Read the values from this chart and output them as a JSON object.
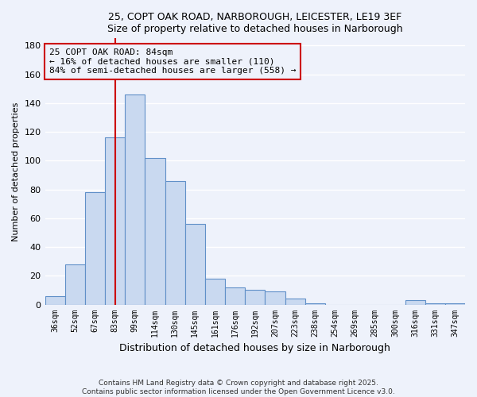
{
  "title1": "25, COPT OAK ROAD, NARBOROUGH, LEICESTER, LE19 3EF",
  "title2": "Size of property relative to detached houses in Narborough",
  "xlabel": "Distribution of detached houses by size in Narborough",
  "ylabel": "Number of detached properties",
  "bar_color": "#c9d9f0",
  "bar_edge_color": "#6090c8",
  "categories": [
    "36sqm",
    "52sqm",
    "67sqm",
    "83sqm",
    "99sqm",
    "114sqm",
    "130sqm",
    "145sqm",
    "161sqm",
    "176sqm",
    "192sqm",
    "207sqm",
    "223sqm",
    "238sqm",
    "254sqm",
    "269sqm",
    "285sqm",
    "300sqm",
    "316sqm",
    "331sqm",
    "347sqm"
  ],
  "values": [
    6,
    28,
    78,
    116,
    146,
    102,
    86,
    56,
    18,
    12,
    10,
    9,
    4,
    1,
    0,
    0,
    0,
    0,
    3,
    1,
    1
  ],
  "ylim": [
    0,
    185
  ],
  "yticks": [
    0,
    20,
    40,
    60,
    80,
    100,
    120,
    140,
    160,
    180
  ],
  "vline_idx": 3,
  "vline_color": "#cc0000",
  "annotation_line1": "25 COPT OAK ROAD: 84sqm",
  "annotation_line2": "← 16% of detached houses are smaller (110)",
  "annotation_line3": "84% of semi-detached houses are larger (558) →",
  "footer1": "Contains HM Land Registry data © Crown copyright and database right 2025.",
  "footer2": "Contains public sector information licensed under the Open Government Licence v3.0.",
  "background_color": "#eef2fb",
  "grid_color": "#ffffff"
}
